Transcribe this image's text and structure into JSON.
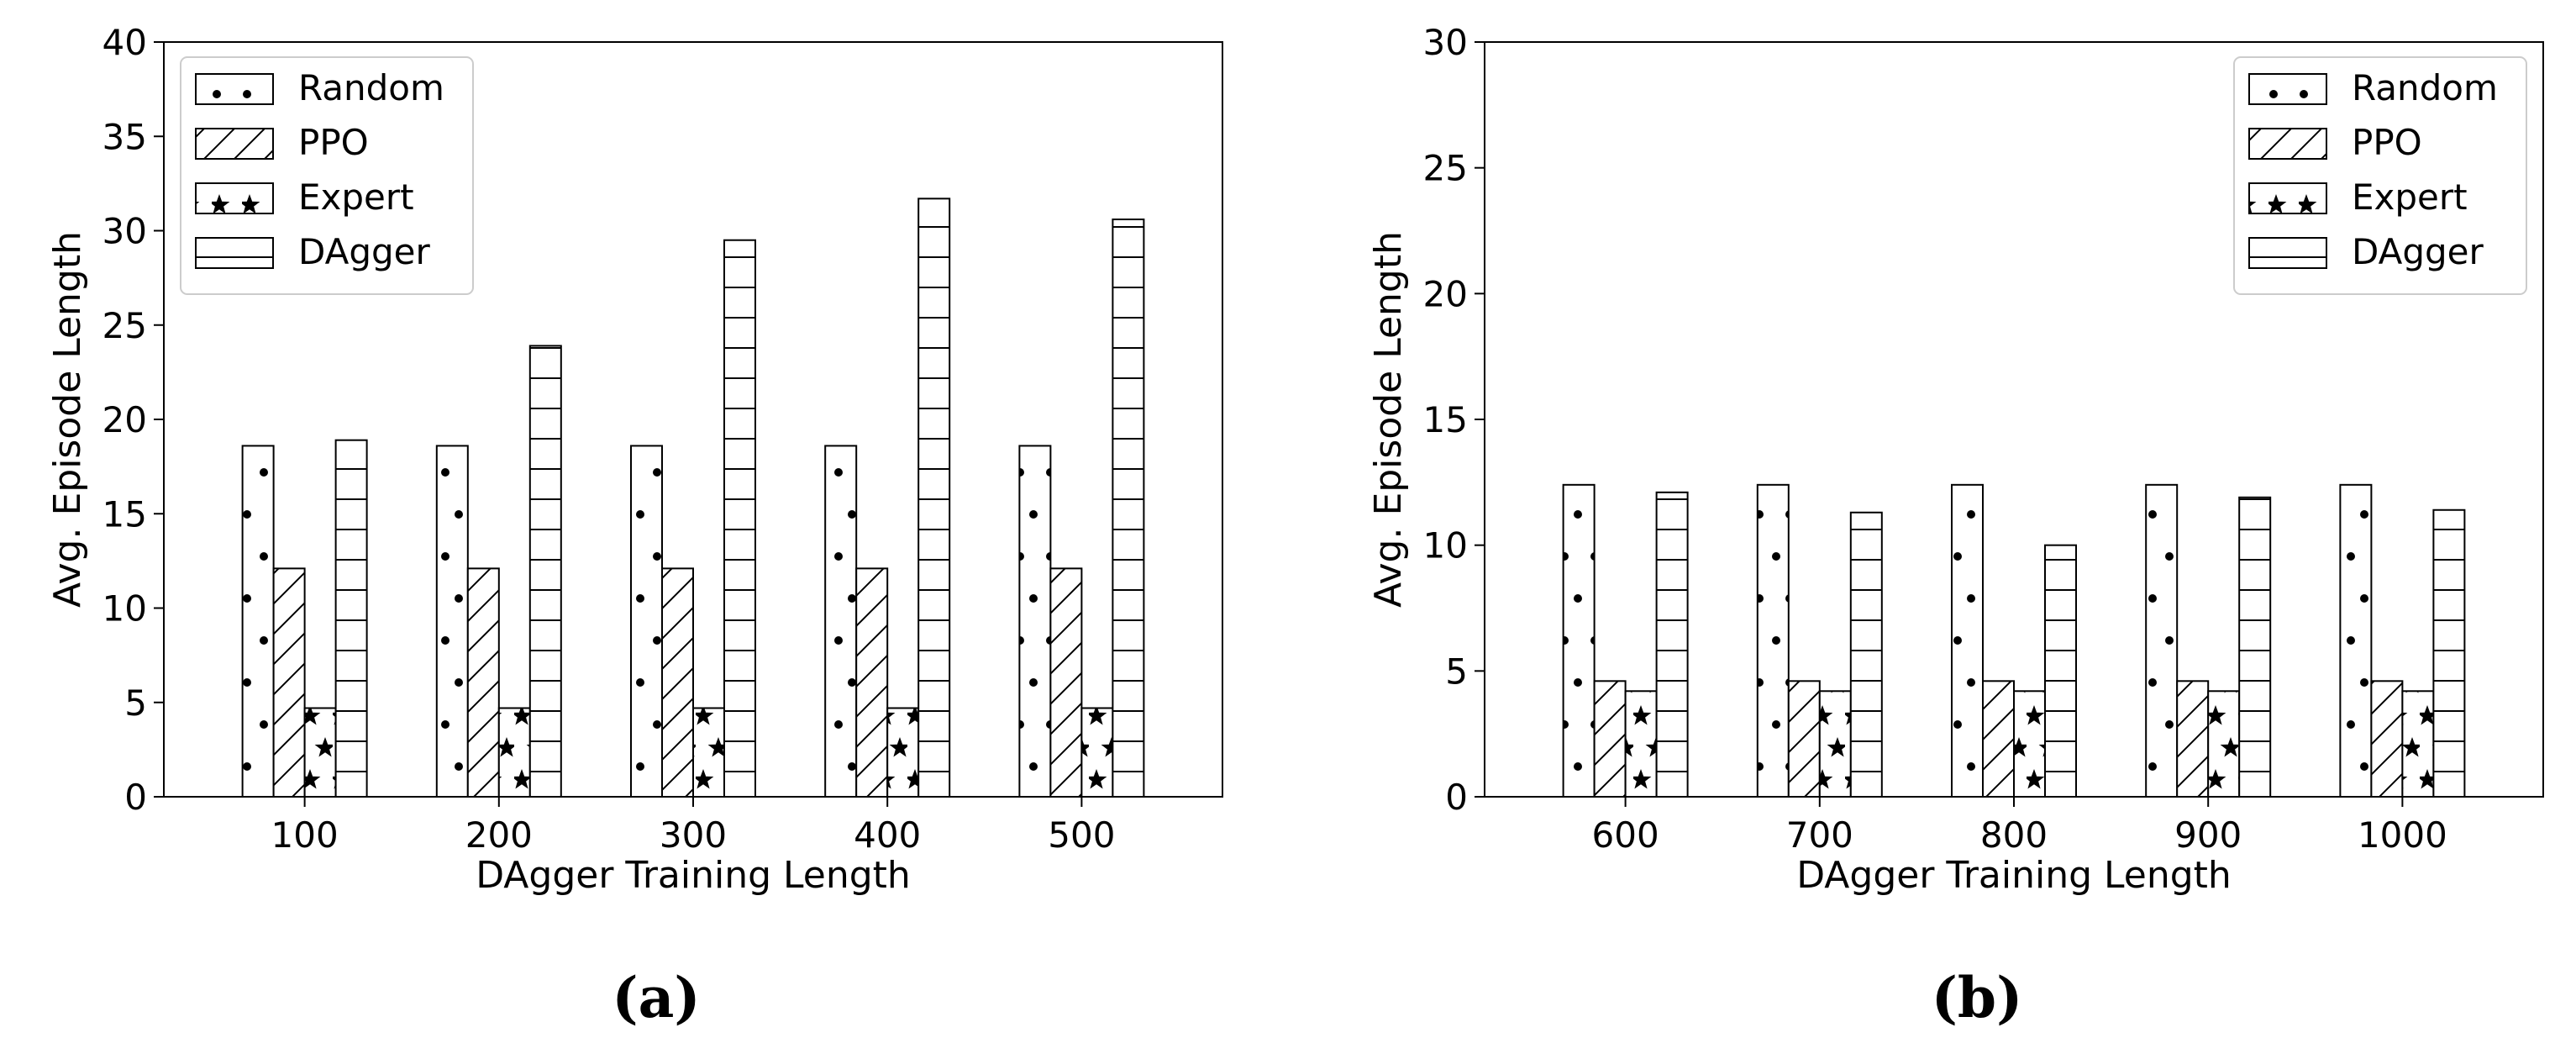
{
  "chart_data": [
    {
      "type": "bar",
      "panel_label": "(a)",
      "xlabel": "DAgger Training Length",
      "ylabel": "Avg. Episode Length",
      "ylim": [
        0,
        40
      ],
      "yticks": [
        0,
        5,
        10,
        15,
        20,
        25,
        30,
        35,
        40
      ],
      "categories": [
        "100",
        "200",
        "300",
        "400",
        "500"
      ],
      "legend_position": "top-left",
      "grid": false,
      "series": [
        {
          "name": "Random",
          "pattern": "dots",
          "values": [
            18.6,
            18.6,
            18.6,
            18.6,
            18.6
          ]
        },
        {
          "name": "PPO",
          "pattern": "diagonal",
          "values": [
            12.1,
            12.1,
            12.1,
            12.1,
            12.1
          ]
        },
        {
          "name": "Expert",
          "pattern": "stars",
          "values": [
            4.7,
            4.7,
            4.7,
            4.7,
            4.7
          ]
        },
        {
          "name": "DAgger",
          "pattern": "horizontal",
          "values": [
            18.9,
            23.9,
            29.5,
            31.7,
            30.6
          ]
        }
      ]
    },
    {
      "type": "bar",
      "panel_label": "(b)",
      "xlabel": "DAgger Training Length",
      "ylabel": "Avg. Episode Length",
      "ylim": [
        0,
        30
      ],
      "yticks": [
        0,
        5,
        10,
        15,
        20,
        25,
        30
      ],
      "categories": [
        "600",
        "700",
        "800",
        "900",
        "1000"
      ],
      "legend_position": "top-right",
      "grid": false,
      "series": [
        {
          "name": "Random",
          "pattern": "dots",
          "values": [
            12.4,
            12.4,
            12.4,
            12.4,
            12.4
          ]
        },
        {
          "name": "PPO",
          "pattern": "diagonal",
          "values": [
            4.6,
            4.6,
            4.6,
            4.6,
            4.6
          ]
        },
        {
          "name": "Expert",
          "pattern": "stars",
          "values": [
            4.2,
            4.2,
            4.2,
            4.2,
            4.2
          ]
        },
        {
          "name": "DAgger",
          "pattern": "horizontal",
          "values": [
            12.1,
            11.3,
            10.0,
            11.9,
            11.4
          ]
        }
      ]
    }
  ]
}
